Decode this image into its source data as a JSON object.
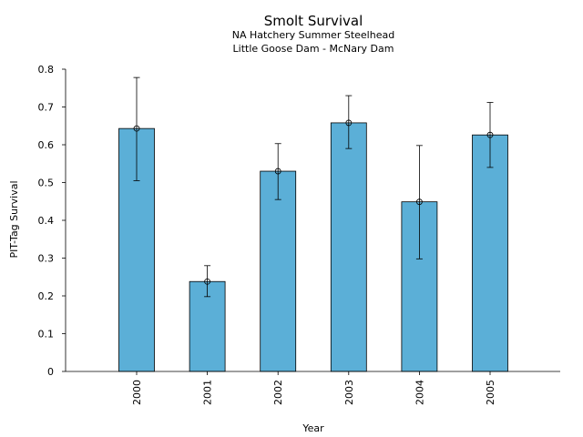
{
  "chart_data": {
    "type": "bar",
    "title": "Smolt Survival",
    "subtitle": [
      "NA Hatchery Summer Steelhead",
      "Little Goose Dam - McNary Dam"
    ],
    "xlabel": "Year",
    "ylabel": "PIT-Tag Survival",
    "categories": [
      "2000",
      "2001",
      "2002",
      "2003",
      "2004",
      "2005"
    ],
    "values": [
      0.643,
      0.238,
      0.53,
      0.658,
      0.449,
      0.626
    ],
    "error_low": [
      0.505,
      0.198,
      0.455,
      0.59,
      0.298,
      0.54
    ],
    "error_high": [
      0.778,
      0.28,
      0.603,
      0.73,
      0.598,
      0.712
    ],
    "ylim": [
      0,
      0.8
    ],
    "yticks": [
      "0",
      "0.1",
      "0.2",
      "0.3",
      "0.4",
      "0.5",
      "0.6",
      "0.7",
      "0.8"
    ],
    "grid": false,
    "bar_color": "#5bafd7",
    "edge_color": "#000000"
  }
}
